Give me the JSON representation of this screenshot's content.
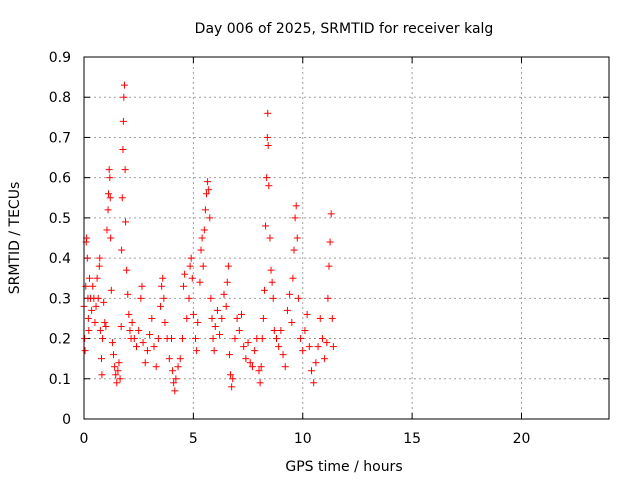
{
  "chart_data": {
    "type": "scatter",
    "title": "Day 006 of 2025, SRMTID for receiver kalg",
    "xlabel": "GPS time / hours",
    "ylabel": "SRMTID / TECUs",
    "xlim": [
      0,
      24
    ],
    "ylim": [
      0,
      0.9
    ],
    "xticks": [
      0,
      5,
      10,
      15,
      20
    ],
    "xtick_labels": [
      "0",
      "5",
      "10",
      "15",
      "20"
    ],
    "yticks": [
      0,
      0.1,
      0.2,
      0.3,
      0.4,
      0.5,
      0.6,
      0.7,
      0.8,
      0.9
    ],
    "ytick_labels": [
      "0",
      "0.1",
      "0.2",
      "0.3",
      "0.4",
      "0.5",
      "0.6",
      "0.7",
      "0.8",
      "0.9"
    ],
    "grid": true,
    "marker": "+",
    "series": [
      {
        "name": "SRMTID",
        "color": "#ff0000",
        "points": [
          [
            0.0,
            0.28
          ],
          [
            0.03,
            0.2
          ],
          [
            0.05,
            0.17
          ],
          [
            0.08,
            0.33
          ],
          [
            0.1,
            0.44
          ],
          [
            0.12,
            0.45
          ],
          [
            0.15,
            0.4
          ],
          [
            0.18,
            0.3
          ],
          [
            0.2,
            0.25
          ],
          [
            0.22,
            0.22
          ],
          [
            0.25,
            0.35
          ],
          [
            0.3,
            0.3
          ],
          [
            0.35,
            0.27
          ],
          [
            0.4,
            0.33
          ],
          [
            0.45,
            0.3
          ],
          [
            0.5,
            0.24
          ],
          [
            0.55,
            0.28
          ],
          [
            0.6,
            0.35
          ],
          [
            0.65,
            0.3
          ],
          [
            0.7,
            0.38
          ],
          [
            0.72,
            0.4
          ],
          [
            0.75,
            0.22
          ],
          [
            0.8,
            0.15
          ],
          [
            0.82,
            0.11
          ],
          [
            0.85,
            0.2
          ],
          [
            0.9,
            0.29
          ],
          [
            0.95,
            0.24
          ],
          [
            1.0,
            0.23
          ],
          [
            1.05,
            0.47
          ],
          [
            1.1,
            0.52
          ],
          [
            1.12,
            0.56
          ],
          [
            1.15,
            0.62
          ],
          [
            1.18,
            0.6
          ],
          [
            1.2,
            0.55
          ],
          [
            1.22,
            0.45
          ],
          [
            1.25,
            0.32
          ],
          [
            1.3,
            0.19
          ],
          [
            1.35,
            0.16
          ],
          [
            1.4,
            0.13
          ],
          [
            1.45,
            0.11
          ],
          [
            1.5,
            0.09
          ],
          [
            1.55,
            0.12
          ],
          [
            1.6,
            0.14
          ],
          [
            1.65,
            0.1
          ],
          [
            1.7,
            0.23
          ],
          [
            1.72,
            0.42
          ],
          [
            1.75,
            0.55
          ],
          [
            1.78,
            0.67
          ],
          [
            1.8,
            0.74
          ],
          [
            1.82,
            0.8
          ],
          [
            1.85,
            0.83
          ],
          [
            1.88,
            0.62
          ],
          [
            1.9,
            0.49
          ],
          [
            1.95,
            0.37
          ],
          [
            2.0,
            0.31
          ],
          [
            2.05,
            0.26
          ],
          [
            2.1,
            0.22
          ],
          [
            2.15,
            0.2
          ],
          [
            2.2,
            0.24
          ],
          [
            2.3,
            0.2
          ],
          [
            2.4,
            0.18
          ],
          [
            2.5,
            0.22
          ],
          [
            2.6,
            0.3
          ],
          [
            2.65,
            0.33
          ],
          [
            2.7,
            0.19
          ],
          [
            2.8,
            0.14
          ],
          [
            2.9,
            0.17
          ],
          [
            3.0,
            0.21
          ],
          [
            3.1,
            0.25
          ],
          [
            3.2,
            0.18
          ],
          [
            3.3,
            0.13
          ],
          [
            3.4,
            0.2
          ],
          [
            3.5,
            0.28
          ],
          [
            3.55,
            0.33
          ],
          [
            3.6,
            0.35
          ],
          [
            3.65,
            0.3
          ],
          [
            3.7,
            0.24
          ],
          [
            3.8,
            0.2
          ],
          [
            3.9,
            0.15
          ],
          [
            4.0,
            0.2
          ],
          [
            4.05,
            0.12
          ],
          [
            4.1,
            0.09
          ],
          [
            4.15,
            0.07
          ],
          [
            4.2,
            0.1
          ],
          [
            4.3,
            0.13
          ],
          [
            4.4,
            0.15
          ],
          [
            4.5,
            0.2
          ],
          [
            4.55,
            0.33
          ],
          [
            4.6,
            0.36
          ],
          [
            4.7,
            0.25
          ],
          [
            4.8,
            0.3
          ],
          [
            4.85,
            0.38
          ],
          [
            4.9,
            0.4
          ],
          [
            4.95,
            0.35
          ],
          [
            5.0,
            0.26
          ],
          [
            5.1,
            0.2
          ],
          [
            5.15,
            0.17
          ],
          [
            5.2,
            0.24
          ],
          [
            5.3,
            0.34
          ],
          [
            5.35,
            0.42
          ],
          [
            5.4,
            0.45
          ],
          [
            5.45,
            0.38
          ],
          [
            5.5,
            0.47
          ],
          [
            5.55,
            0.52
          ],
          [
            5.6,
            0.56
          ],
          [
            5.65,
            0.59
          ],
          [
            5.7,
            0.57
          ],
          [
            5.75,
            0.5
          ],
          [
            5.8,
            0.3
          ],
          [
            5.85,
            0.25
          ],
          [
            5.9,
            0.2
          ],
          [
            5.95,
            0.17
          ],
          [
            6.0,
            0.23
          ],
          [
            6.1,
            0.27
          ],
          [
            6.2,
            0.21
          ],
          [
            6.3,
            0.25
          ],
          [
            6.4,
            0.31
          ],
          [
            6.5,
            0.28
          ],
          [
            6.55,
            0.34
          ],
          [
            6.6,
            0.38
          ],
          [
            6.65,
            0.16
          ],
          [
            6.7,
            0.11
          ],
          [
            6.75,
            0.08
          ],
          [
            6.8,
            0.1
          ],
          [
            6.9,
            0.2
          ],
          [
            7.0,
            0.25
          ],
          [
            7.1,
            0.22
          ],
          [
            7.2,
            0.26
          ],
          [
            7.3,
            0.18
          ],
          [
            7.4,
            0.15
          ],
          [
            7.5,
            0.19
          ],
          [
            7.6,
            0.14
          ],
          [
            7.7,
            0.13
          ],
          [
            7.8,
            0.17
          ],
          [
            7.9,
            0.2
          ],
          [
            8.0,
            0.12
          ],
          [
            8.05,
            0.09
          ],
          [
            8.1,
            0.13
          ],
          [
            8.15,
            0.2
          ],
          [
            8.2,
            0.25
          ],
          [
            8.25,
            0.32
          ],
          [
            8.3,
            0.48
          ],
          [
            8.35,
            0.6
          ],
          [
            8.38,
            0.7
          ],
          [
            8.4,
            0.76
          ],
          [
            8.42,
            0.68
          ],
          [
            8.45,
            0.58
          ],
          [
            8.5,
            0.45
          ],
          [
            8.55,
            0.37
          ],
          [
            8.6,
            0.34
          ],
          [
            8.65,
            0.3
          ],
          [
            8.7,
            0.22
          ],
          [
            8.8,
            0.2
          ],
          [
            8.9,
            0.18
          ],
          [
            9.0,
            0.22
          ],
          [
            9.1,
            0.16
          ],
          [
            9.2,
            0.13
          ],
          [
            9.3,
            0.27
          ],
          [
            9.4,
            0.31
          ],
          [
            9.5,
            0.24
          ],
          [
            9.55,
            0.35
          ],
          [
            9.6,
            0.42
          ],
          [
            9.65,
            0.5
          ],
          [
            9.7,
            0.53
          ],
          [
            9.75,
            0.45
          ],
          [
            9.8,
            0.3
          ],
          [
            9.9,
            0.2
          ],
          [
            10.0,
            0.17
          ],
          [
            10.1,
            0.22
          ],
          [
            10.2,
            0.26
          ],
          [
            10.3,
            0.18
          ],
          [
            10.4,
            0.12
          ],
          [
            10.5,
            0.09
          ],
          [
            10.6,
            0.14
          ],
          [
            10.7,
            0.18
          ],
          [
            10.8,
            0.25
          ],
          [
            10.9,
            0.2
          ],
          [
            11.0,
            0.15
          ],
          [
            11.1,
            0.19
          ],
          [
            11.15,
            0.3
          ],
          [
            11.2,
            0.38
          ],
          [
            11.25,
            0.44
          ],
          [
            11.3,
            0.51
          ],
          [
            11.35,
            0.25
          ],
          [
            11.4,
            0.18
          ]
        ]
      }
    ]
  }
}
